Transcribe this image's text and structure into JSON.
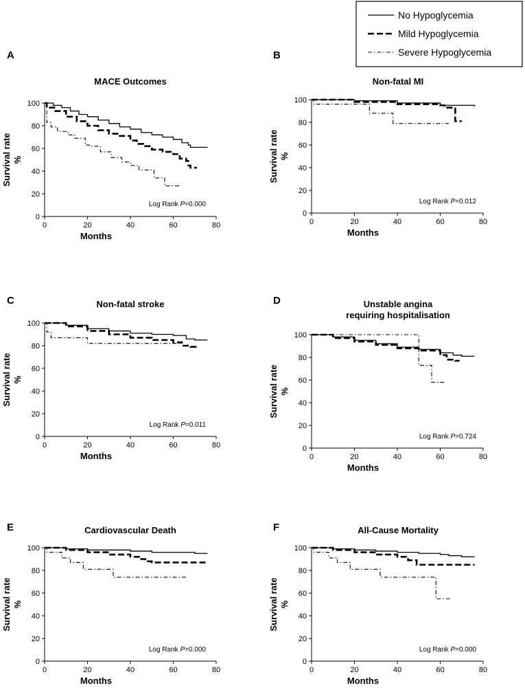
{
  "legend": {
    "entries": [
      {
        "label": "No Hypoglycemia",
        "style": "solid"
      },
      {
        "label": "Mild Hypoglycemia",
        "style": "dashed"
      },
      {
        "label": "Severe Hypoglycemia",
        "style": "dashdot"
      }
    ]
  },
  "chart_data": [
    {
      "panel": "A",
      "type": "line",
      "title": [
        "MACE Outcomes"
      ],
      "xlabel": "Months",
      "ylabel": [
        "Survival rate",
        "%"
      ],
      "xlim": [
        0,
        80
      ],
      "ylim": [
        0,
        100
      ],
      "xticks": [
        0,
        20,
        40,
        60,
        80
      ],
      "yticks": [
        0,
        20,
        40,
        60,
        80,
        100
      ],
      "logrank": {
        "prefix": "Log Rank ",
        "p_label": "P",
        "p_value": "=0.000"
      },
      "series": [
        {
          "name": "No Hypoglycemia",
          "x": [
            0,
            4,
            8,
            12,
            16,
            20,
            25,
            30,
            35,
            40,
            45,
            50,
            55,
            60,
            64,
            67,
            68,
            71,
            72,
            76
          ],
          "y": [
            100,
            98,
            96,
            93,
            90,
            88,
            85,
            82,
            79,
            77,
            74,
            72,
            70,
            68,
            65,
            63,
            61,
            61,
            61,
            61
          ]
        },
        {
          "name": "Mild Hypoglycemia",
          "x": [
            0,
            1,
            5,
            10,
            15,
            20,
            25,
            30,
            35,
            40,
            43,
            46,
            50,
            55,
            60,
            63,
            66,
            67,
            68,
            70,
            71
          ],
          "y": [
            100,
            96,
            93,
            88,
            84,
            80,
            76,
            73,
            71,
            67,
            64,
            62,
            59,
            57,
            55,
            51,
            49,
            45,
            43,
            43,
            43
          ]
        },
        {
          "name": "Severe Hypoglycemia",
          "x": [
            0,
            1,
            3,
            6,
            11,
            14,
            19,
            21,
            26,
            31,
            36,
            40,
            44,
            51,
            56,
            63
          ],
          "y": [
            100,
            83,
            79,
            75,
            72,
            69,
            63,
            62,
            57,
            52,
            48,
            45,
            41,
            34,
            27,
            27
          ]
        }
      ]
    },
    {
      "panel": "B",
      "type": "line",
      "title": [
        "Non-fatal MI"
      ],
      "xlabel": "Months",
      "ylabel": [
        "Survival rate",
        "%"
      ],
      "xlim": [
        0,
        80
      ],
      "ylim": [
        0,
        100
      ],
      "xticks": [
        0,
        20,
        40,
        60,
        80
      ],
      "yticks": [
        0,
        20,
        40,
        60,
        80,
        100
      ],
      "logrank": {
        "prefix": "Log Rank ",
        "p_label": "P",
        "p_value": "=0.012"
      },
      "series": [
        {
          "name": "No Hypoglycemia",
          "x": [
            0,
            20,
            40,
            60,
            76
          ],
          "y": [
            100,
            99,
            97,
            95,
            94
          ]
        },
        {
          "name": "Mild Hypoglycemia",
          "x": [
            0,
            20,
            40,
            60,
            62,
            66,
            67,
            68,
            70
          ],
          "y": [
            100,
            98,
            96,
            95,
            93,
            93,
            81,
            81,
            81
          ]
        },
        {
          "name": "Severe Hypoglycemia",
          "x": [
            0,
            1,
            27,
            38,
            62,
            64
          ],
          "y": [
            100,
            96,
            88,
            79,
            79,
            79
          ]
        }
      ]
    },
    {
      "panel": "C",
      "type": "line",
      "title": [
        "Non-fatal stroke"
      ],
      "xlabel": "Months",
      "ylabel": [
        "Survival rate",
        "%"
      ],
      "xlim": [
        0,
        80
      ],
      "ylim": [
        0,
        100
      ],
      "xticks": [
        0,
        20,
        40,
        60,
        80
      ],
      "yticks": [
        0,
        20,
        40,
        60,
        80,
        100
      ],
      "logrank": {
        "prefix": "Log Rank ",
        "p_label": "P",
        "p_value": "=0.011"
      },
      "series": [
        {
          "name": "No Hypoglycemia",
          "x": [
            0,
            10,
            20,
            30,
            40,
            50,
            60,
            66,
            70,
            76
          ],
          "y": [
            100,
            98,
            95,
            93,
            91,
            90,
            89,
            86,
            85,
            85
          ]
        },
        {
          "name": "Mild Hypoglycemia",
          "x": [
            0,
            10,
            20,
            30,
            40,
            50,
            60,
            64,
            68,
            71
          ],
          "y": [
            100,
            97,
            93,
            90,
            87,
            85,
            83,
            80,
            79,
            79
          ]
        },
        {
          "name": "Severe Hypoglycemia",
          "x": [
            0,
            1,
            3,
            20,
            40,
            63
          ],
          "y": [
            100,
            92,
            87,
            82,
            82,
            82
          ]
        }
      ]
    },
    {
      "panel": "D",
      "type": "line",
      "title": [
        "Unstable angina",
        "requiring hospitalisation"
      ],
      "xlabel": "Months",
      "ylabel": [
        "Survival rate",
        "%"
      ],
      "xlim": [
        0,
        80
      ],
      "ylim": [
        0,
        100
      ],
      "xticks": [
        0,
        20,
        40,
        60,
        80
      ],
      "yticks": [
        0,
        20,
        40,
        60,
        80,
        100
      ],
      "logrank": {
        "prefix": "Log Rank ",
        "p_label": "P",
        "p_value": "=0.724"
      },
      "series": [
        {
          "name": "No Hypoglycemia",
          "x": [
            0,
            10,
            20,
            30,
            40,
            50,
            60,
            66,
            70,
            76
          ],
          "y": [
            100,
            98,
            95,
            92,
            89,
            87,
            84,
            82,
            81,
            81
          ]
        },
        {
          "name": "Mild Hypoglycemia",
          "x": [
            0,
            10,
            20,
            30,
            40,
            50,
            60,
            63,
            67,
            69
          ],
          "y": [
            100,
            97,
            94,
            91,
            88,
            86,
            82,
            78,
            77,
            77
          ]
        },
        {
          "name": "Severe Hypoglycemia",
          "x": [
            0,
            42,
            50,
            56,
            62
          ],
          "y": [
            100,
            100,
            73,
            58,
            58
          ]
        }
      ]
    },
    {
      "panel": "E",
      "type": "line",
      "title": [
        "Cardiovascular Death"
      ],
      "xlabel": "Months",
      "ylabel": [
        "Survival rate",
        "%"
      ],
      "xlim": [
        0,
        80
      ],
      "ylim": [
        0,
        100
      ],
      "xticks": [
        0,
        20,
        40,
        60,
        80
      ],
      "yticks": [
        0,
        20,
        40,
        60,
        80,
        100
      ],
      "logrank": {
        "prefix": "Log Rank ",
        "p_label": "P",
        "p_value": "=0.000"
      },
      "series": [
        {
          "name": "No Hypoglycemia",
          "x": [
            0,
            10,
            20,
            30,
            40,
            50,
            60,
            70,
            76
          ],
          "y": [
            100,
            99,
            98,
            98,
            97,
            96,
            96,
            95,
            95
          ]
        },
        {
          "name": "Mild Hypoglycemia",
          "x": [
            0,
            10,
            20,
            30,
            40,
            44,
            47,
            50,
            60,
            70,
            76
          ],
          "y": [
            100,
            98,
            96,
            94,
            92,
            90,
            88,
            87,
            87,
            87,
            87
          ]
        },
        {
          "name": "Severe Hypoglycemia",
          "x": [
            0,
            1,
            8,
            12,
            18,
            32,
            60,
            66
          ],
          "y": [
            100,
            96,
            91,
            87,
            81,
            74,
            74,
            74
          ]
        }
      ]
    },
    {
      "panel": "F",
      "type": "line",
      "title": [
        "All-Cause Mortality"
      ],
      "xlabel": "Months",
      "ylabel": [
        "Survival rate",
        "%"
      ],
      "xlim": [
        0,
        80
      ],
      "ylim": [
        0,
        100
      ],
      "xticks": [
        0,
        20,
        40,
        60,
        80
      ],
      "yticks": [
        0,
        20,
        40,
        60,
        80,
        100
      ],
      "logrank": {
        "prefix": "Log Rank ",
        "p_label": "P",
        "p_value": "=0.000"
      },
      "series": [
        {
          "name": "No Hypoglycemia",
          "x": [
            0,
            10,
            20,
            30,
            40,
            50,
            60,
            64,
            70,
            76
          ],
          "y": [
            100,
            99,
            98,
            97,
            96,
            95,
            94,
            93,
            92,
            92
          ]
        },
        {
          "name": "Mild Hypoglycemia",
          "x": [
            0,
            10,
            20,
            30,
            40,
            45,
            49,
            55,
            60,
            70,
            76
          ],
          "y": [
            100,
            98,
            96,
            94,
            92,
            89,
            85,
            85,
            85,
            85,
            85
          ]
        },
        {
          "name": "Severe Hypoglycemia",
          "x": [
            0,
            1,
            8,
            12,
            18,
            32,
            57,
            58,
            65
          ],
          "y": [
            100,
            96,
            91,
            87,
            81,
            74,
            74,
            55,
            55
          ]
        }
      ]
    }
  ]
}
